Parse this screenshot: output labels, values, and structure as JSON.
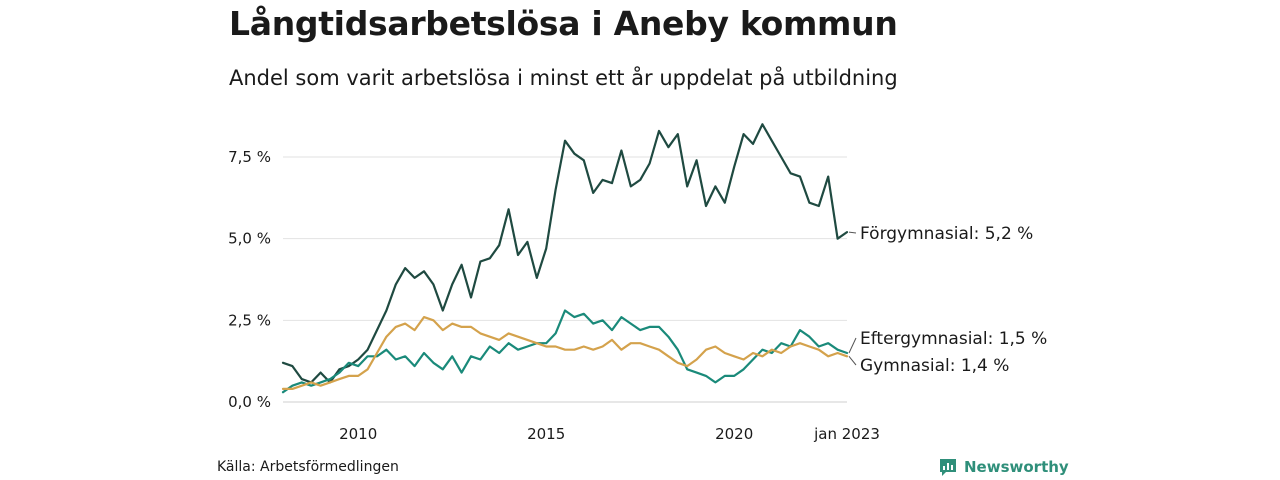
{
  "title": "Långtidsarbetslösa i Aneby kommun",
  "subtitle": "Andel som varit arbetslösa i minst ett år uppdelat på utbildning",
  "source": "Källa: Arbetsförmedlingen",
  "brand": {
    "name": "Newsworthy",
    "icon": "chart-bubble-icon",
    "color": "#2f8f7a"
  },
  "chart_data": {
    "type": "line",
    "title": "Långtidsarbetslösa i Aneby kommun",
    "subtitle": "Andel som varit arbetslösa i minst ett år uppdelat på utbildning",
    "x_axis": {
      "type": "date",
      "range": [
        "2008-01",
        "2023-01"
      ],
      "ticks": [
        {
          "value": "2010-01",
          "label": "2010"
        },
        {
          "value": "2015-01",
          "label": "2015"
        },
        {
          "value": "2020-01",
          "label": "2020"
        },
        {
          "value": "2023-01",
          "label": "jan 2023"
        }
      ]
    },
    "y_axis": {
      "unit": "%",
      "range": [
        0,
        8.6
      ],
      "ticks": [
        {
          "value": 0,
          "label": "0,0 %"
        },
        {
          "value": 2.5,
          "label": "2,5 %"
        },
        {
          "value": 5,
          "label": "5,0 %"
        },
        {
          "value": 7.5,
          "label": "7,5 %"
        }
      ],
      "grid": true
    },
    "legend": "end-of-line labels (right)",
    "series": [
      {
        "name": "Förgymnasial",
        "end_label": "Förgymnasial: 5,2 %",
        "color": "#1f4a41",
        "points": [
          [
            "2008-01",
            1.2
          ],
          [
            "2008-04",
            1.1
          ],
          [
            "2008-07",
            0.7
          ],
          [
            "2008-10",
            0.6
          ],
          [
            "2009-01",
            0.9
          ],
          [
            "2009-04",
            0.6
          ],
          [
            "2009-07",
            1.0
          ],
          [
            "2009-10",
            1.1
          ],
          [
            "2010-01",
            1.3
          ],
          [
            "2010-04",
            1.6
          ],
          [
            "2010-07",
            2.2
          ],
          [
            "2010-10",
            2.8
          ],
          [
            "2011-01",
            3.6
          ],
          [
            "2011-04",
            4.1
          ],
          [
            "2011-07",
            3.8
          ],
          [
            "2011-10",
            4.0
          ],
          [
            "2012-01",
            3.6
          ],
          [
            "2012-04",
            2.8
          ],
          [
            "2012-07",
            3.6
          ],
          [
            "2012-10",
            4.2
          ],
          [
            "2013-01",
            3.2
          ],
          [
            "2013-04",
            4.3
          ],
          [
            "2013-07",
            4.4
          ],
          [
            "2013-10",
            4.8
          ],
          [
            "2014-01",
            5.9
          ],
          [
            "2014-04",
            4.5
          ],
          [
            "2014-07",
            4.9
          ],
          [
            "2014-10",
            3.8
          ],
          [
            "2015-01",
            4.7
          ],
          [
            "2015-04",
            6.5
          ],
          [
            "2015-07",
            8.0
          ],
          [
            "2015-10",
            7.6
          ],
          [
            "2016-01",
            7.4
          ],
          [
            "2016-04",
            6.4
          ],
          [
            "2016-07",
            6.8
          ],
          [
            "2016-10",
            6.7
          ],
          [
            "2017-01",
            7.7
          ],
          [
            "2017-04",
            6.6
          ],
          [
            "2017-07",
            6.8
          ],
          [
            "2017-10",
            7.3
          ],
          [
            "2018-01",
            8.3
          ],
          [
            "2018-04",
            7.8
          ],
          [
            "2018-07",
            8.2
          ],
          [
            "2018-10",
            6.6
          ],
          [
            "2019-01",
            7.4
          ],
          [
            "2019-04",
            6.0
          ],
          [
            "2019-07",
            6.6
          ],
          [
            "2019-10",
            6.1
          ],
          [
            "2020-01",
            7.2
          ],
          [
            "2020-04",
            8.2
          ],
          [
            "2020-07",
            7.9
          ],
          [
            "2020-10",
            8.5
          ],
          [
            "2021-01",
            8.0
          ],
          [
            "2021-04",
            7.5
          ],
          [
            "2021-07",
            7.0
          ],
          [
            "2021-10",
            6.9
          ],
          [
            "2022-01",
            6.1
          ],
          [
            "2022-04",
            6.0
          ],
          [
            "2022-07",
            6.9
          ],
          [
            "2022-10",
            5.0
          ],
          [
            "2023-01",
            5.2
          ]
        ]
      },
      {
        "name": "Eftergymnasial",
        "end_label": "Eftergymnasial: 1,5 %",
        "color": "#1a8a7a",
        "points": [
          [
            "2008-01",
            0.3
          ],
          [
            "2008-04",
            0.5
          ],
          [
            "2008-07",
            0.6
          ],
          [
            "2008-10",
            0.5
          ],
          [
            "2009-01",
            0.6
          ],
          [
            "2009-04",
            0.7
          ],
          [
            "2009-07",
            0.9
          ],
          [
            "2009-10",
            1.2
          ],
          [
            "2010-01",
            1.1
          ],
          [
            "2010-04",
            1.4
          ],
          [
            "2010-07",
            1.4
          ],
          [
            "2010-10",
            1.6
          ],
          [
            "2011-01",
            1.3
          ],
          [
            "2011-04",
            1.4
          ],
          [
            "2011-07",
            1.1
          ],
          [
            "2011-10",
            1.5
          ],
          [
            "2012-01",
            1.2
          ],
          [
            "2012-04",
            1.0
          ],
          [
            "2012-07",
            1.4
          ],
          [
            "2012-10",
            0.9
          ],
          [
            "2013-01",
            1.4
          ],
          [
            "2013-04",
            1.3
          ],
          [
            "2013-07",
            1.7
          ],
          [
            "2013-10",
            1.5
          ],
          [
            "2014-01",
            1.8
          ],
          [
            "2014-04",
            1.6
          ],
          [
            "2014-07",
            1.7
          ],
          [
            "2014-10",
            1.8
          ],
          [
            "2015-01",
            1.8
          ],
          [
            "2015-04",
            2.1
          ],
          [
            "2015-07",
            2.8
          ],
          [
            "2015-10",
            2.6
          ],
          [
            "2016-01",
            2.7
          ],
          [
            "2016-04",
            2.4
          ],
          [
            "2016-07",
            2.5
          ],
          [
            "2016-10",
            2.2
          ],
          [
            "2017-01",
            2.6
          ],
          [
            "2017-04",
            2.4
          ],
          [
            "2017-07",
            2.2
          ],
          [
            "2017-10",
            2.3
          ],
          [
            "2018-01",
            2.3
          ],
          [
            "2018-04",
            2.0
          ],
          [
            "2018-07",
            1.6
          ],
          [
            "2018-10",
            1.0
          ],
          [
            "2019-01",
            0.9
          ],
          [
            "2019-04",
            0.8
          ],
          [
            "2019-07",
            0.6
          ],
          [
            "2019-10",
            0.8
          ],
          [
            "2020-01",
            0.8
          ],
          [
            "2020-04",
            1.0
          ],
          [
            "2020-07",
            1.3
          ],
          [
            "2020-10",
            1.6
          ],
          [
            "2021-01",
            1.5
          ],
          [
            "2021-04",
            1.8
          ],
          [
            "2021-07",
            1.7
          ],
          [
            "2021-10",
            2.2
          ],
          [
            "2022-01",
            2.0
          ],
          [
            "2022-04",
            1.7
          ],
          [
            "2022-07",
            1.8
          ],
          [
            "2022-10",
            1.6
          ],
          [
            "2023-01",
            1.5
          ]
        ]
      },
      {
        "name": "Gymnasial",
        "end_label": "Gymnasial: 1,4 %",
        "color": "#d4a24c",
        "points": [
          [
            "2008-01",
            0.4
          ],
          [
            "2008-04",
            0.4
          ],
          [
            "2008-07",
            0.5
          ],
          [
            "2008-10",
            0.6
          ],
          [
            "2009-01",
            0.5
          ],
          [
            "2009-04",
            0.6
          ],
          [
            "2009-07",
            0.7
          ],
          [
            "2009-10",
            0.8
          ],
          [
            "2010-01",
            0.8
          ],
          [
            "2010-04",
            1.0
          ],
          [
            "2010-07",
            1.5
          ],
          [
            "2010-10",
            2.0
          ],
          [
            "2011-01",
            2.3
          ],
          [
            "2011-04",
            2.4
          ],
          [
            "2011-07",
            2.2
          ],
          [
            "2011-10",
            2.6
          ],
          [
            "2012-01",
            2.5
          ],
          [
            "2012-04",
            2.2
          ],
          [
            "2012-07",
            2.4
          ],
          [
            "2012-10",
            2.3
          ],
          [
            "2013-01",
            2.3
          ],
          [
            "2013-04",
            2.1
          ],
          [
            "2013-07",
            2.0
          ],
          [
            "2013-10",
            1.9
          ],
          [
            "2014-01",
            2.1
          ],
          [
            "2014-04",
            2.0
          ],
          [
            "2014-07",
            1.9
          ],
          [
            "2014-10",
            1.8
          ],
          [
            "2015-01",
            1.7
          ],
          [
            "2015-04",
            1.7
          ],
          [
            "2015-07",
            1.6
          ],
          [
            "2015-10",
            1.6
          ],
          [
            "2016-01",
            1.7
          ],
          [
            "2016-04",
            1.6
          ],
          [
            "2016-07",
            1.7
          ],
          [
            "2016-10",
            1.9
          ],
          [
            "2017-01",
            1.6
          ],
          [
            "2017-04",
            1.8
          ],
          [
            "2017-07",
            1.8
          ],
          [
            "2017-10",
            1.7
          ],
          [
            "2018-01",
            1.6
          ],
          [
            "2018-04",
            1.4
          ],
          [
            "2018-07",
            1.2
          ],
          [
            "2018-10",
            1.1
          ],
          [
            "2019-01",
            1.3
          ],
          [
            "2019-04",
            1.6
          ],
          [
            "2019-07",
            1.7
          ],
          [
            "2019-10",
            1.5
          ],
          [
            "2020-01",
            1.4
          ],
          [
            "2020-04",
            1.3
          ],
          [
            "2020-07",
            1.5
          ],
          [
            "2020-10",
            1.4
          ],
          [
            "2021-01",
            1.6
          ],
          [
            "2021-04",
            1.5
          ],
          [
            "2021-07",
            1.7
          ],
          [
            "2021-10",
            1.8
          ],
          [
            "2022-01",
            1.7
          ],
          [
            "2022-04",
            1.6
          ],
          [
            "2022-07",
            1.4
          ],
          [
            "2022-10",
            1.5
          ],
          [
            "2023-01",
            1.4
          ]
        ]
      }
    ]
  }
}
